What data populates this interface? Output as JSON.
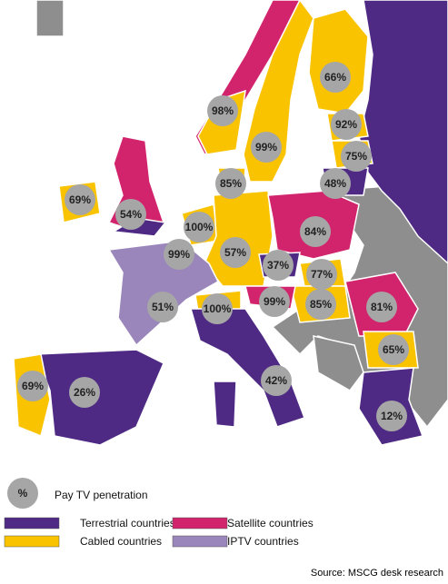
{
  "markers": [
    {
      "label": "66%"
    },
    {
      "label": "98%"
    },
    {
      "label": "92%"
    },
    {
      "label": "99%"
    },
    {
      "label": "75%"
    },
    {
      "label": "48%"
    },
    {
      "label": "85%"
    },
    {
      "label": "69%"
    },
    {
      "label": "54%"
    },
    {
      "label": "100%"
    },
    {
      "label": "84%"
    },
    {
      "label": "99%"
    },
    {
      "label": "57%"
    },
    {
      "label": "37%"
    },
    {
      "label": "77%"
    },
    {
      "label": "51%"
    },
    {
      "label": "100%"
    },
    {
      "label": "99%"
    },
    {
      "label": "85%"
    },
    {
      "label": "81%"
    },
    {
      "label": "65%"
    },
    {
      "label": "69%"
    },
    {
      "label": "26%"
    },
    {
      "label": "42%"
    },
    {
      "label": "12%"
    }
  ],
  "legend": {
    "symbol": "%",
    "symbol_label": "Pay TV penetration",
    "items": [
      {
        "label": "Terrestrial countries",
        "color": "#4e2a84"
      },
      {
        "label": "Cabled countries",
        "color": "#f9c300"
      },
      {
        "label": "Satellite countries",
        "color": "#d2246c"
      },
      {
        "label": "IPTV countries",
        "color": "#9a86bb"
      }
    ]
  },
  "source": "Source: MSCG desk research"
}
